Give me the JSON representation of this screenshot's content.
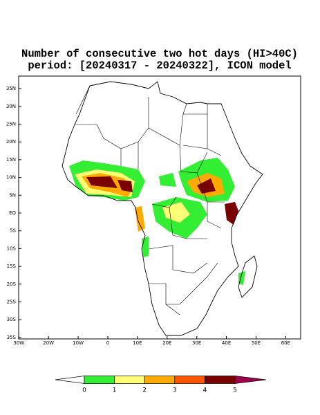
{
  "title": [
    "Number of consecutive two hot days (HI>40C)",
    "period: [20240317 - 20240322], ICON model"
  ],
  "map": {
    "lat_ticks": [
      {
        "value": 35,
        "label": "35N"
      },
      {
        "value": 30,
        "label": "30N"
      },
      {
        "value": 25,
        "label": "25N"
      },
      {
        "value": 20,
        "label": "20N"
      },
      {
        "value": 15,
        "label": "15N"
      },
      {
        "value": 10,
        "label": "10N"
      },
      {
        "value": 5,
        "label": "5N"
      },
      {
        "value": 0,
        "label": "EQ"
      },
      {
        "value": -5,
        "label": "5S"
      },
      {
        "value": -10,
        "label": "10S"
      },
      {
        "value": -15,
        "label": "15S"
      },
      {
        "value": -20,
        "label": "20S"
      },
      {
        "value": -25,
        "label": "25S"
      },
      {
        "value": -30,
        "label": "30S"
      },
      {
        "value": -35,
        "label": "35S"
      }
    ],
    "lon_ticks": [
      {
        "value": -30,
        "label": "30W"
      },
      {
        "value": -20,
        "label": "20W"
      },
      {
        "value": -10,
        "label": "10W"
      },
      0,
      {
        "value": 10,
        "label": "10E"
      },
      {
        "value": 20,
        "label": "20E"
      },
      {
        "value": 30,
        "label": "30E"
      },
      {
        "value": 40,
        "label": "40E"
      },
      {
        "value": 50,
        "label": "50E"
      },
      {
        "value": 60,
        "label": "60E"
      }
    ]
  },
  "colorbar": {
    "levels": [
      0,
      1,
      2,
      3,
      4,
      5
    ],
    "colors": [
      "#ffffff",
      "#33ee33",
      "#ffff77",
      "#ffaa00",
      "#ff5500",
      "#7a0000",
      "#a0004a"
    ]
  }
}
